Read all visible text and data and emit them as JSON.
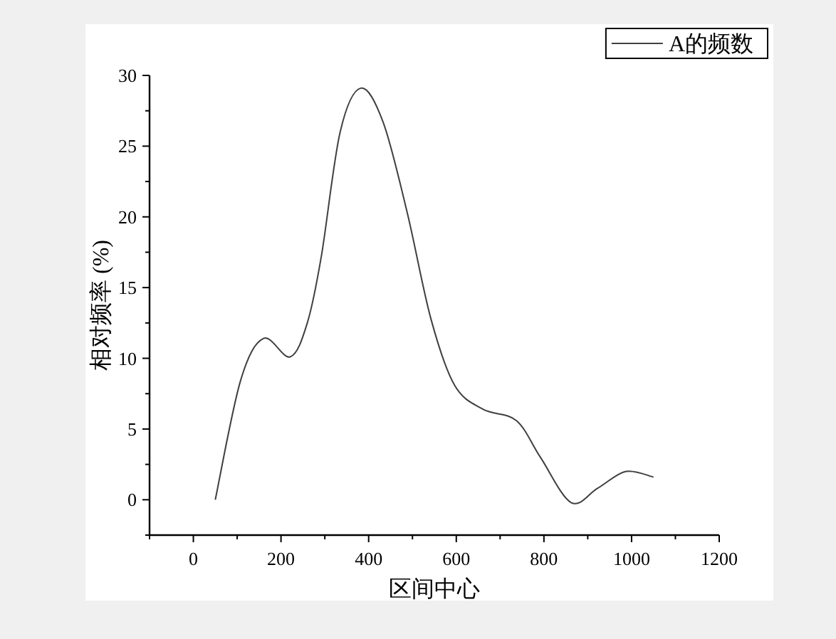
{
  "chart_data": {
    "type": "line",
    "xlabel": "区间中心",
    "ylabel": "相对频率 (%)",
    "x": [
      50,
      107.5,
      160,
      221,
      260,
      292,
      335,
      382,
      433,
      488,
      542,
      596,
      661,
      737,
      792,
      862,
      922,
      987,
      1050
    ],
    "series": [
      {
        "name": "A的频数",
        "color": "#404040",
        "values": [
          0,
          8.4,
          11.4,
          10.1,
          12.5,
          17.2,
          26.0,
          29.1,
          26.7,
          20.3,
          12.8,
          8.1,
          6.4,
          5.6,
          3.0,
          -0.2,
          0.8,
          2.0,
          1.6
        ]
      }
    ],
    "xlim": [
      -100,
      1200
    ],
    "ylim": [
      -2.5,
      30
    ],
    "xticks": [
      0,
      200,
      400,
      600,
      800,
      1000,
      1200
    ],
    "yticks": [
      0,
      5,
      10,
      15,
      20,
      25,
      30
    ],
    "legend": "top right",
    "grid": false,
    "marker": "none",
    "line_style": "solid"
  }
}
